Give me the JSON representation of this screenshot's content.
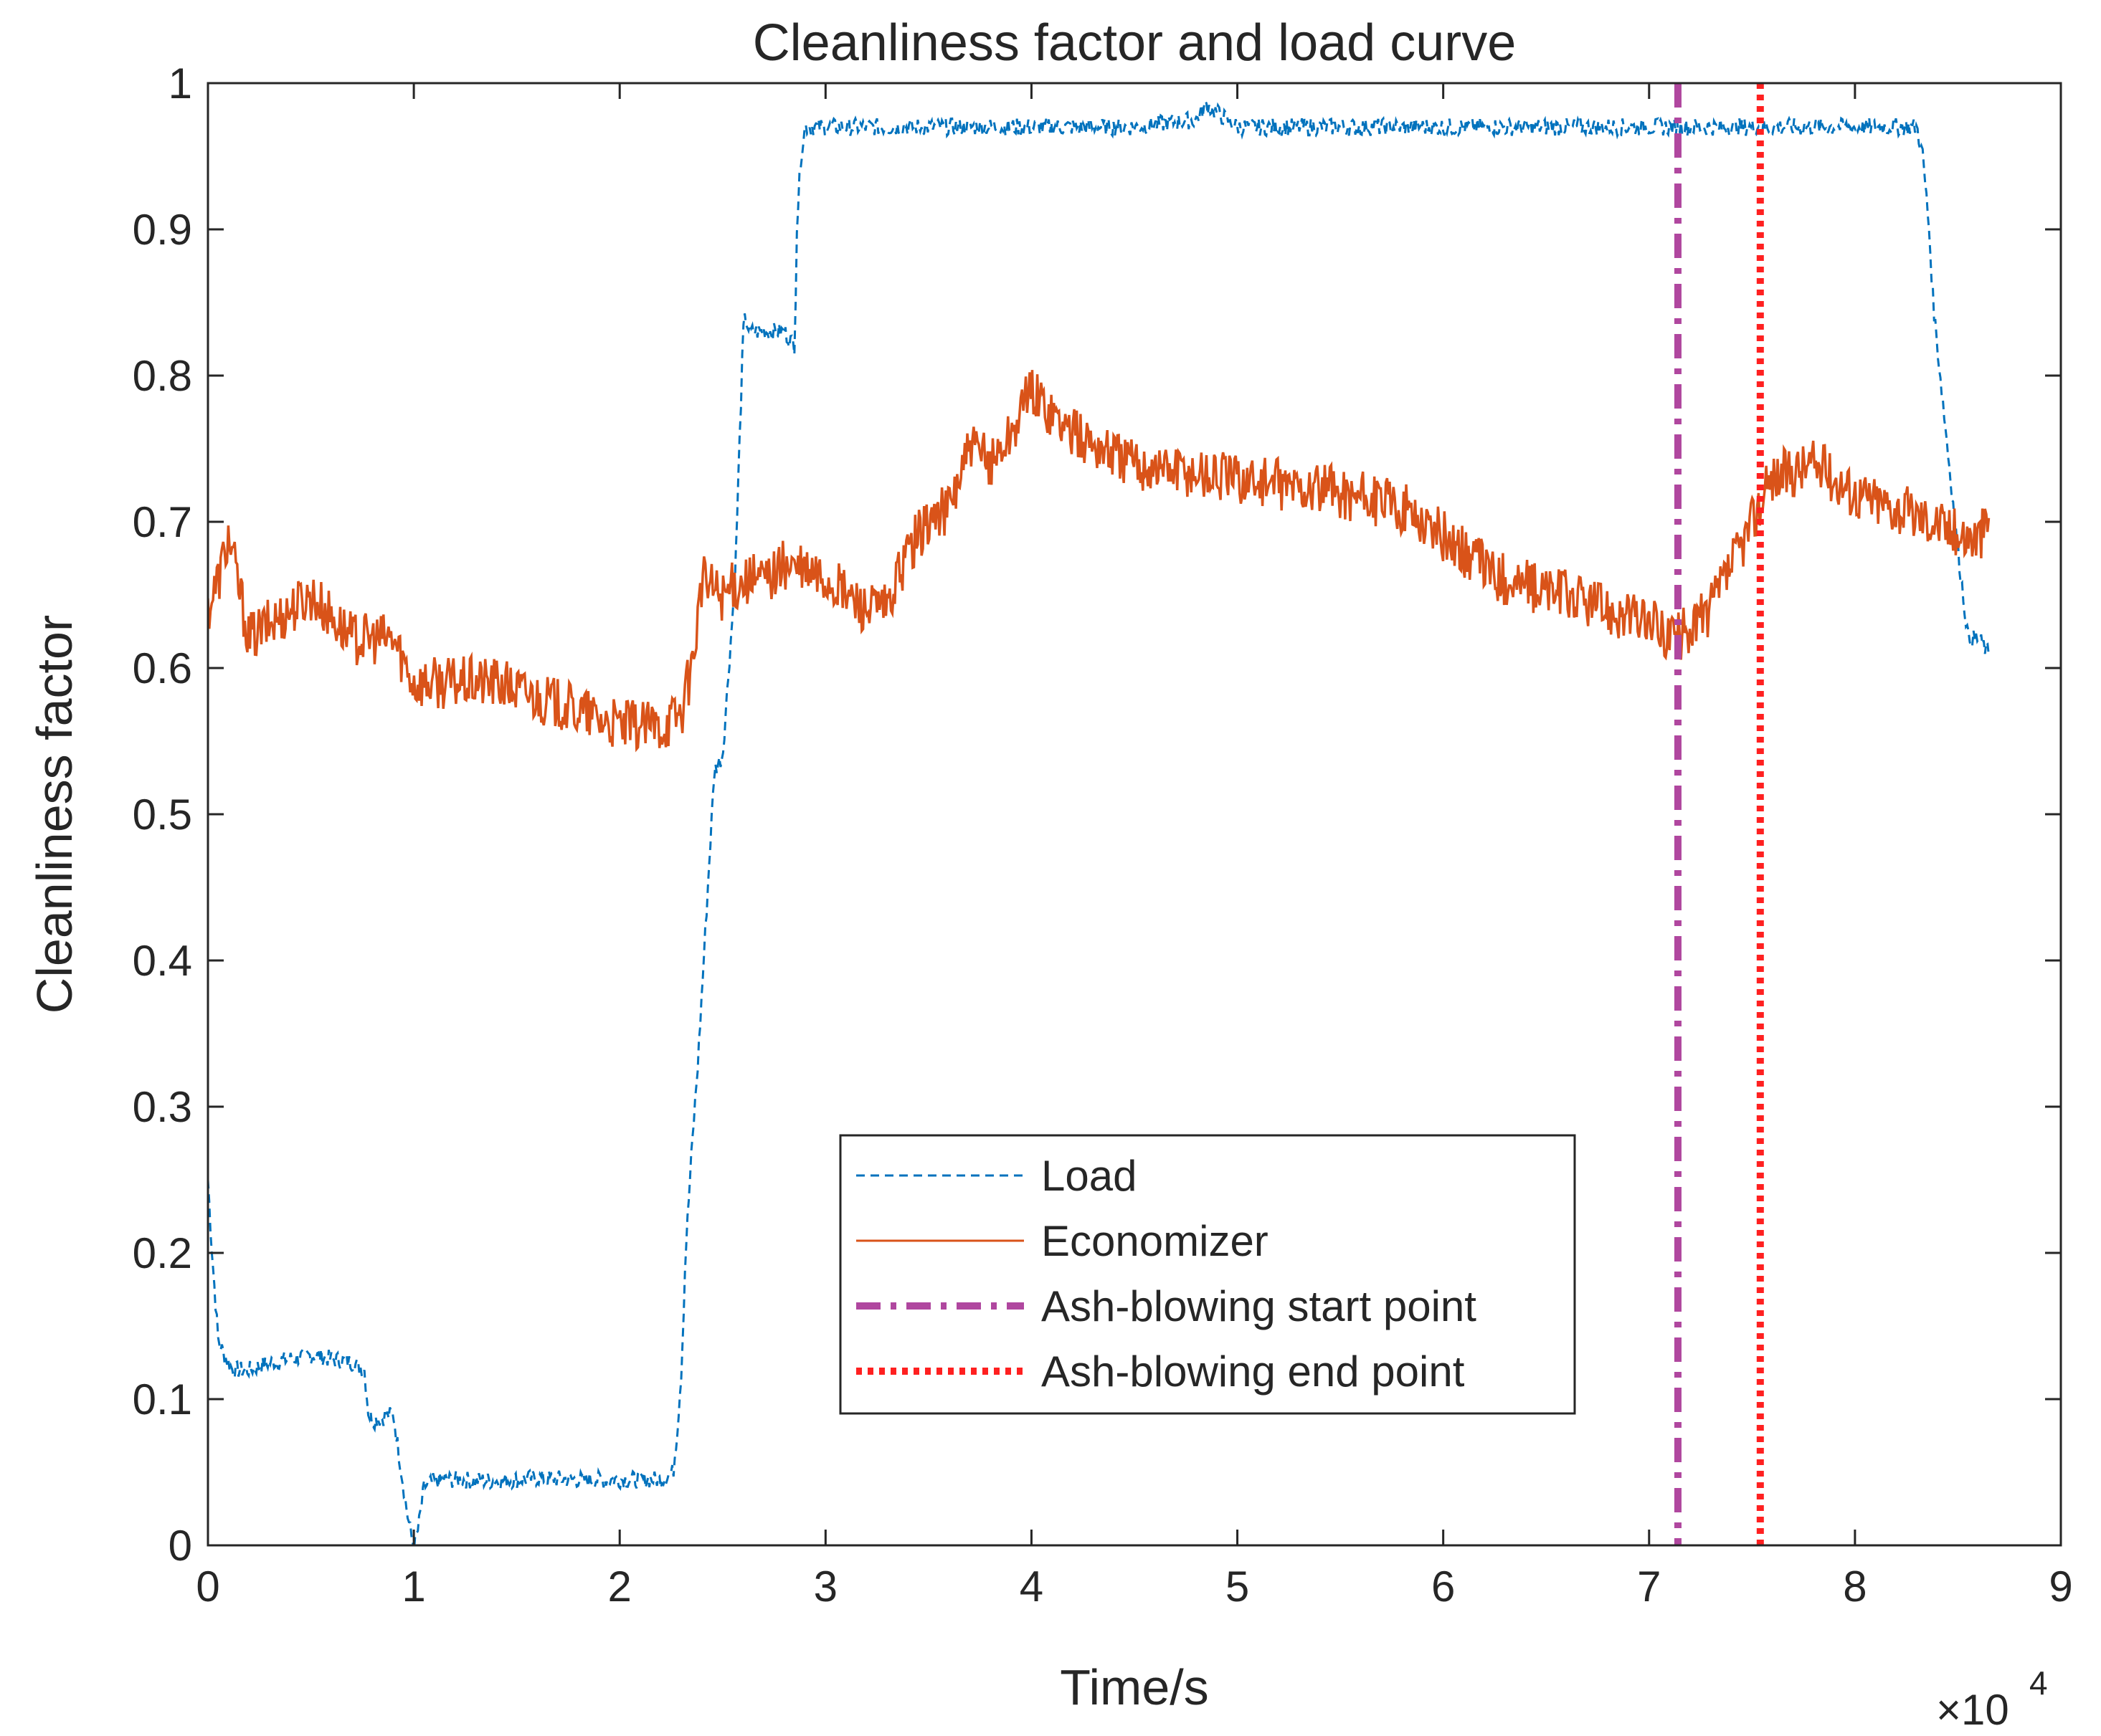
{
  "chart_data": {
    "type": "line",
    "title": "Cleanliness factor and load curve",
    "xlabel": "Time/s",
    "ylabel": "Cleanliness factor",
    "x_exponent_base": "×10",
    "x_exponent_power": "4",
    "xlim": [
      0,
      9
    ],
    "ylim": [
      0,
      1
    ],
    "x_ticks": [
      0,
      1,
      2,
      3,
      4,
      5,
      6,
      7,
      8,
      9
    ],
    "x_tick_labels": [
      "0",
      "1",
      "2",
      "3",
      "4",
      "5",
      "6",
      "7",
      "8",
      "9"
    ],
    "y_ticks": [
      0,
      0.1,
      0.2,
      0.3,
      0.4,
      0.5,
      0.6,
      0.7,
      0.8,
      0.9,
      1
    ],
    "y_tick_labels": [
      "0",
      "0.1",
      "0.2",
      "0.3",
      "0.4",
      "0.5",
      "0.6",
      "0.7",
      "0.8",
      "0.9",
      "1"
    ],
    "grid": false,
    "legend_position": "bottom-center",
    "series": [
      {
        "name": "Load",
        "color": "#0072BD",
        "style": "dashed",
        "x": [
          0,
          0.02,
          0.05,
          0.08,
          0.12,
          0.2,
          0.3,
          0.5,
          0.7,
          0.76,
          0.78,
          0.8,
          0.9,
          0.93,
          0.95,
          0.97,
          0.99,
          1.0,
          1.02,
          1.05,
          1.1,
          1.2,
          1.4,
          1.6,
          1.8,
          2.0,
          2.2,
          2.26,
          2.28,
          2.3,
          2.32,
          2.35,
          2.38,
          2.42,
          2.46,
          2.5,
          2.53,
          2.56,
          2.6,
          2.61,
          2.63,
          2.7,
          2.8,
          2.85,
          2.86,
          2.88,
          2.9,
          3.0,
          3.5,
          4.0,
          4.5,
          4.8,
          4.85,
          5.0,
          5.5,
          6.0,
          6.5,
          7.0,
          7.5,
          8.0,
          8.3,
          8.33,
          8.36,
          8.38,
          8.4,
          8.45,
          8.5,
          8.55,
          8.6,
          8.65
        ],
        "values": [
          0.25,
          0.2,
          0.14,
          0.13,
          0.12,
          0.12,
          0.125,
          0.13,
          0.125,
          0.12,
          0.09,
          0.085,
          0.09,
          0.06,
          0.04,
          0.02,
          0.005,
          0.0,
          0.01,
          0.04,
          0.044,
          0.045,
          0.044,
          0.046,
          0.045,
          0.045,
          0.045,
          0.05,
          0.08,
          0.12,
          0.2,
          0.27,
          0.33,
          0.43,
          0.53,
          0.54,
          0.6,
          0.66,
          0.83,
          0.84,
          0.83,
          0.83,
          0.83,
          0.82,
          0.9,
          0.95,
          0.97,
          0.97,
          0.97,
          0.97,
          0.97,
          0.975,
          0.985,
          0.97,
          0.97,
          0.97,
          0.97,
          0.97,
          0.97,
          0.97,
          0.97,
          0.95,
          0.9,
          0.85,
          0.82,
          0.75,
          0.68,
          0.62,
          0.62,
          0.61
        ]
      },
      {
        "name": "Economizer",
        "color": "#D95319",
        "style": "solid",
        "x": [
          0,
          0.05,
          0.1,
          0.2,
          0.3,
          0.5,
          0.7,
          0.9,
          1.0,
          1.2,
          1.4,
          1.6,
          1.8,
          2.0,
          2.2,
          2.3,
          2.35,
          2.4,
          2.5,
          2.6,
          2.7,
          2.8,
          3.0,
          3.2,
          3.3,
          3.4,
          3.5,
          3.6,
          3.7,
          3.8,
          3.9,
          4.0,
          4.2,
          4.5,
          5.0,
          5.5,
          5.8,
          6.0,
          6.3,
          6.6,
          7.0,
          7.14,
          7.3,
          7.4,
          7.5,
          7.6,
          7.8,
          8.0,
          8.2,
          8.4,
          8.5,
          8.6,
          8.65
        ],
        "values": [
          0.64,
          0.66,
          0.69,
          0.62,
          0.63,
          0.65,
          0.62,
          0.62,
          0.59,
          0.59,
          0.59,
          0.58,
          0.57,
          0.56,
          0.56,
          0.57,
          0.6,
          0.66,
          0.65,
          0.66,
          0.66,
          0.67,
          0.66,
          0.64,
          0.64,
          0.68,
          0.7,
          0.71,
          0.75,
          0.74,
          0.76,
          0.79,
          0.76,
          0.74,
          0.73,
          0.72,
          0.71,
          0.69,
          0.66,
          0.65,
          0.63,
          0.62,
          0.64,
          0.67,
          0.7,
          0.73,
          0.74,
          0.72,
          0.71,
          0.7,
          0.69,
          0.69,
          0.7
        ]
      }
    ],
    "markers": [
      {
        "name": "Ash-blowing start point",
        "x": 7.14,
        "color": "#B0479F",
        "style": "dashdot"
      },
      {
        "name": "Ash-blowing end point",
        "x": 7.54,
        "color": "#FF2020",
        "style": "dotted"
      }
    ]
  }
}
